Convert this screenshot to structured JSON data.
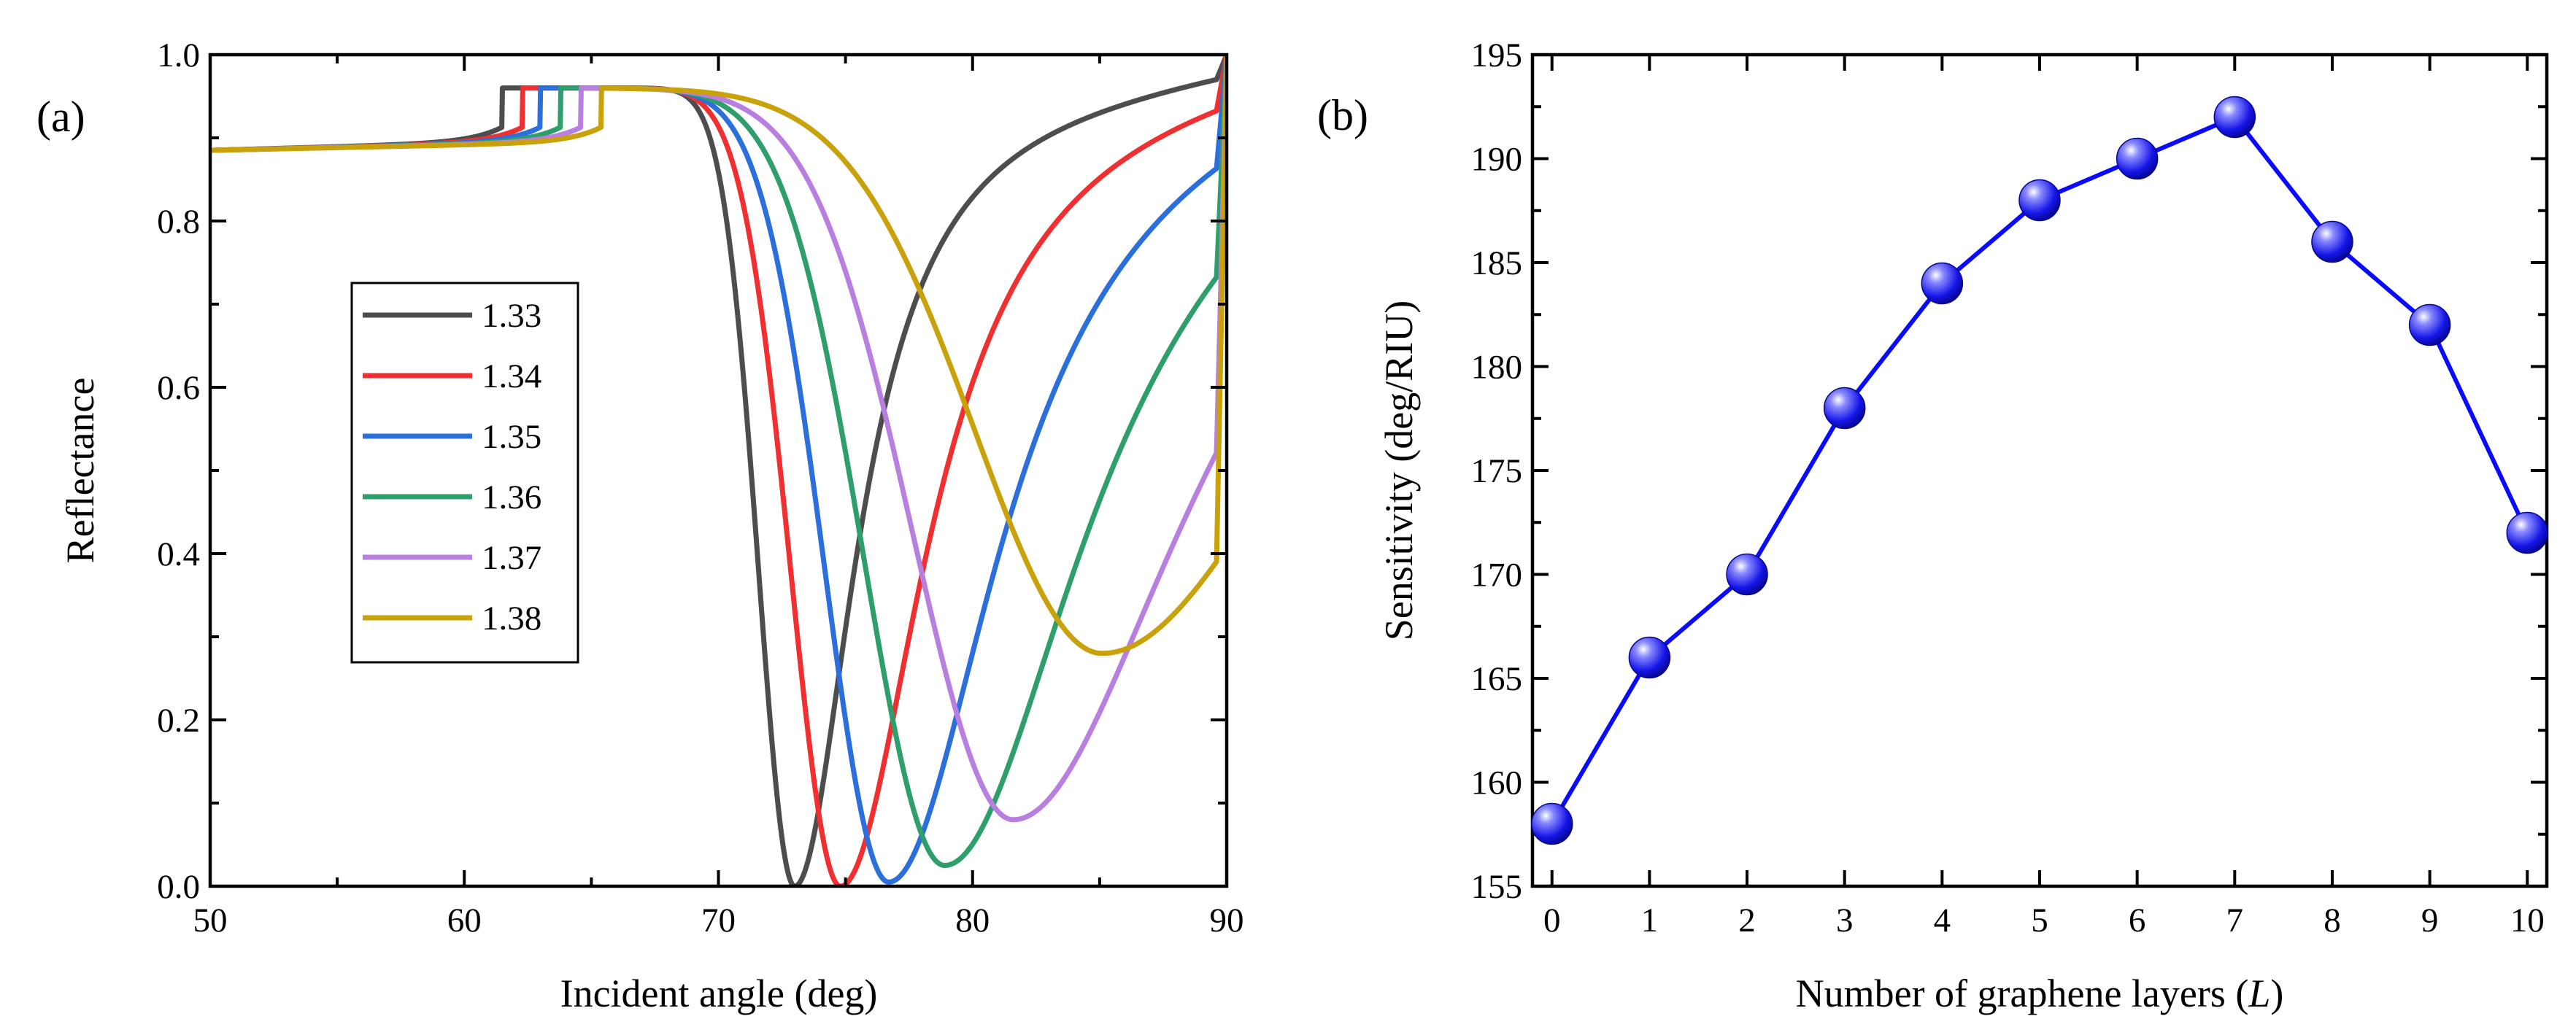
{
  "chart_data": [
    {
      "panel": "(a)",
      "type": "line",
      "title": "",
      "xlabel": "Incident angle (deg)",
      "ylabel": "Reflectance",
      "xlim": [
        50,
        90
      ],
      "ylim": [
        0.0,
        1.0
      ],
      "xticks": [
        "50",
        "60",
        "70",
        "80",
        "90"
      ],
      "yticks": [
        "0.0",
        "0.2",
        "0.4",
        "0.6",
        "0.8",
        "1.0"
      ],
      "legend_position": "left-middle",
      "series": [
        {
          "name": "1.33",
          "color": "#4d4d4d",
          "critical_angle": 61.5,
          "plateau": 0.96,
          "resonance_angle": 73.0,
          "min_reflectance": 0.0
        },
        {
          "name": "1.34",
          "color": "#f03030",
          "critical_angle": 62.3,
          "plateau": 0.96,
          "resonance_angle": 74.8,
          "min_reflectance": 0.0
        },
        {
          "name": "1.35",
          "color": "#2a6fdb",
          "critical_angle": 63.0,
          "plateau": 0.96,
          "resonance_angle": 76.7,
          "min_reflectance": 0.005
        },
        {
          "name": "1.36",
          "color": "#2e9e6b",
          "critical_angle": 63.8,
          "plateau": 0.96,
          "resonance_angle": 78.9,
          "min_reflectance": 0.025
        },
        {
          "name": "1.37",
          "color": "#b97fe0",
          "critical_angle": 64.6,
          "plateau": 0.96,
          "resonance_angle": 81.6,
          "min_reflectance": 0.08
        },
        {
          "name": "1.38",
          "color": "#c9a10a",
          "critical_angle": 65.4,
          "plateau": 0.96,
          "resonance_angle": 85.1,
          "min_reflectance": 0.28
        }
      ]
    },
    {
      "panel": "(b)",
      "type": "line",
      "title": "",
      "xlabel": "Number of  graphene layers (",
      "xlabel_italic": "L",
      "xlabel_end": ")",
      "ylabel": "Sensitivity (deg/RIU)",
      "xlim": [
        -0.2,
        10.2
      ],
      "ylim": [
        155,
        195
      ],
      "xticks": [
        "0",
        "1",
        "2",
        "3",
        "4",
        "5",
        "6",
        "7",
        "8",
        "9",
        "10"
      ],
      "yticks": [
        "155",
        "160",
        "165",
        "170",
        "175",
        "180",
        "185",
        "190",
        "195"
      ],
      "marker_color": "#1a1aff",
      "x": [
        0,
        1,
        2,
        3,
        4,
        5,
        6,
        7,
        8,
        9,
        10
      ],
      "values": [
        158,
        166,
        170,
        178,
        184,
        188,
        190,
        192,
        186,
        182,
        172
      ]
    }
  ]
}
